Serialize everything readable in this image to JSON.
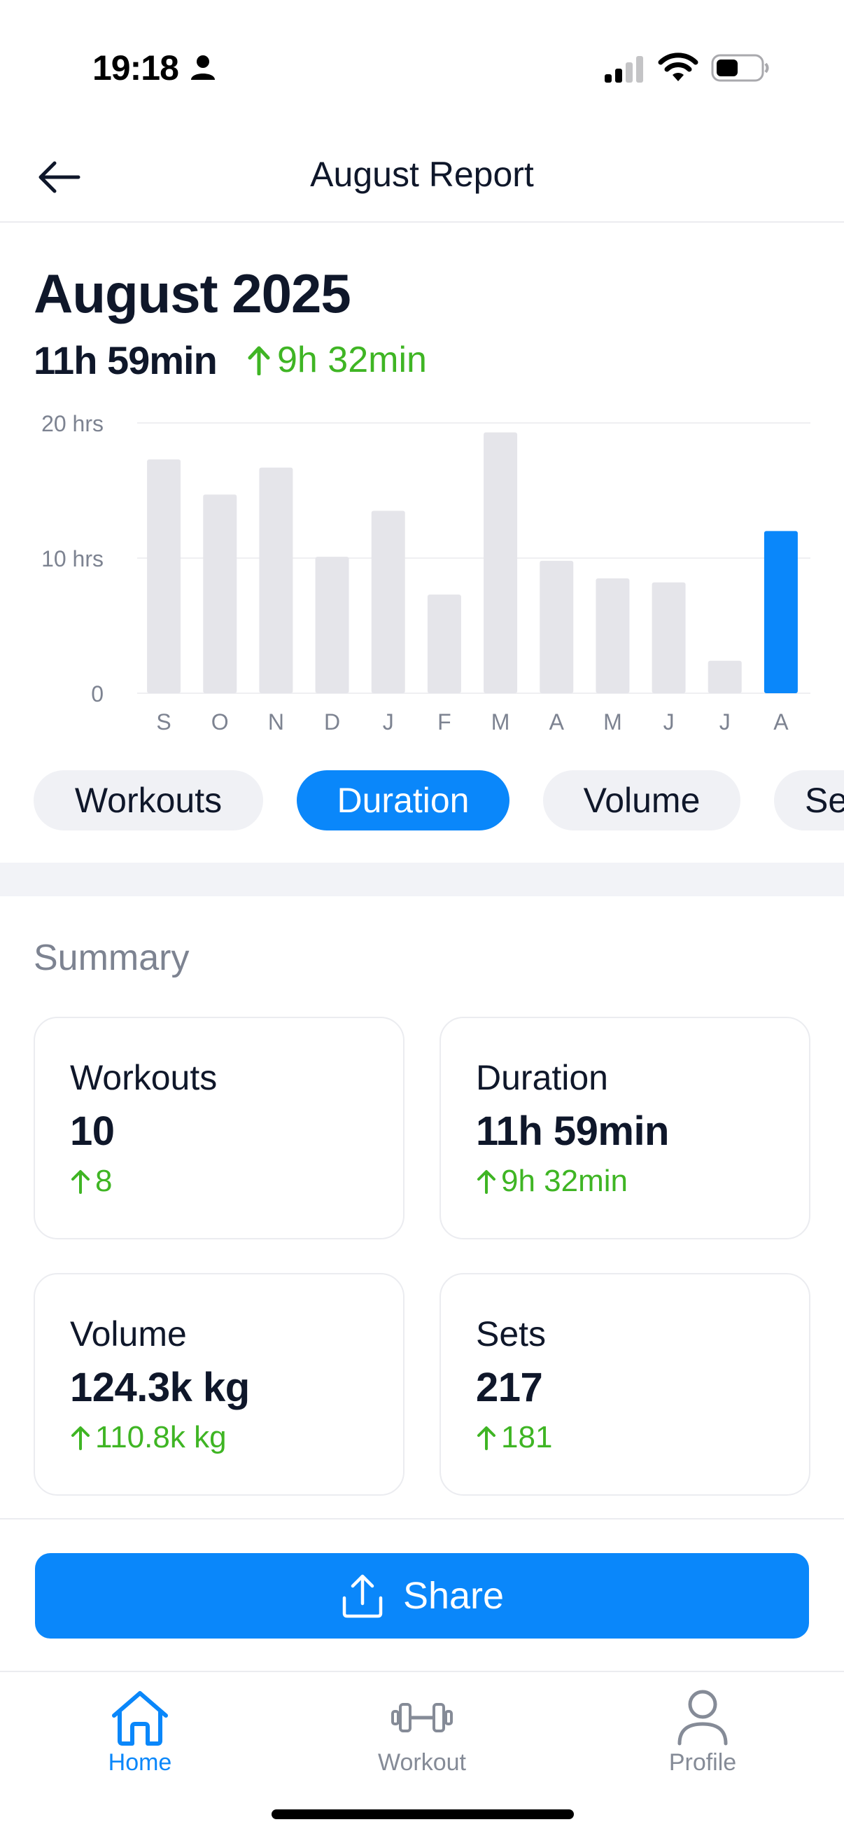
{
  "status_bar": {
    "time": "19:18"
  },
  "header": {
    "title": "August Report"
  },
  "report": {
    "month": "August 2025",
    "total_duration": "11h 59min",
    "delta_duration": "9h 32min"
  },
  "chart_data": {
    "type": "bar",
    "categories": [
      "S",
      "O",
      "N",
      "D",
      "J",
      "F",
      "M",
      "A",
      "M",
      "J",
      "J",
      "A"
    ],
    "values": [
      17.3,
      14.7,
      16.7,
      10.1,
      13.5,
      7.3,
      19.3,
      9.8,
      8.5,
      8.2,
      2.4,
      12.0
    ],
    "highlight_index": 11,
    "y_ticks": [
      "0",
      "10 hrs",
      "20 hrs"
    ],
    "ylim": [
      0,
      20
    ],
    "grid": true,
    "colors": {
      "bar": "#e5e5ea",
      "highlight": "#0a87fa"
    }
  },
  "chips": [
    {
      "label": "Workouts",
      "active": false
    },
    {
      "label": "Duration",
      "active": true
    },
    {
      "label": "Volume",
      "active": false
    },
    {
      "label": "Sets",
      "active": false
    }
  ],
  "summary": {
    "title": "Summary",
    "cards": [
      {
        "label": "Workouts",
        "value": "10",
        "delta": "8"
      },
      {
        "label": "Duration",
        "value": "11h 59min",
        "delta": "9h 32min"
      },
      {
        "label": "Volume",
        "value": "124.3k kg",
        "delta": "110.8k kg"
      },
      {
        "label": "Sets",
        "value": "217",
        "delta": "181"
      }
    ]
  },
  "share": {
    "label": "Share"
  },
  "tab_bar": {
    "items": [
      {
        "label": "Home",
        "icon": "home-icon",
        "active": true
      },
      {
        "label": "Workout",
        "icon": "dumbbell-icon",
        "active": false
      },
      {
        "label": "Profile",
        "icon": "person-icon",
        "active": false
      }
    ]
  },
  "colors": {
    "accent": "#0a87fa",
    "positive": "#3fb524",
    "muted": "#7d8391"
  }
}
